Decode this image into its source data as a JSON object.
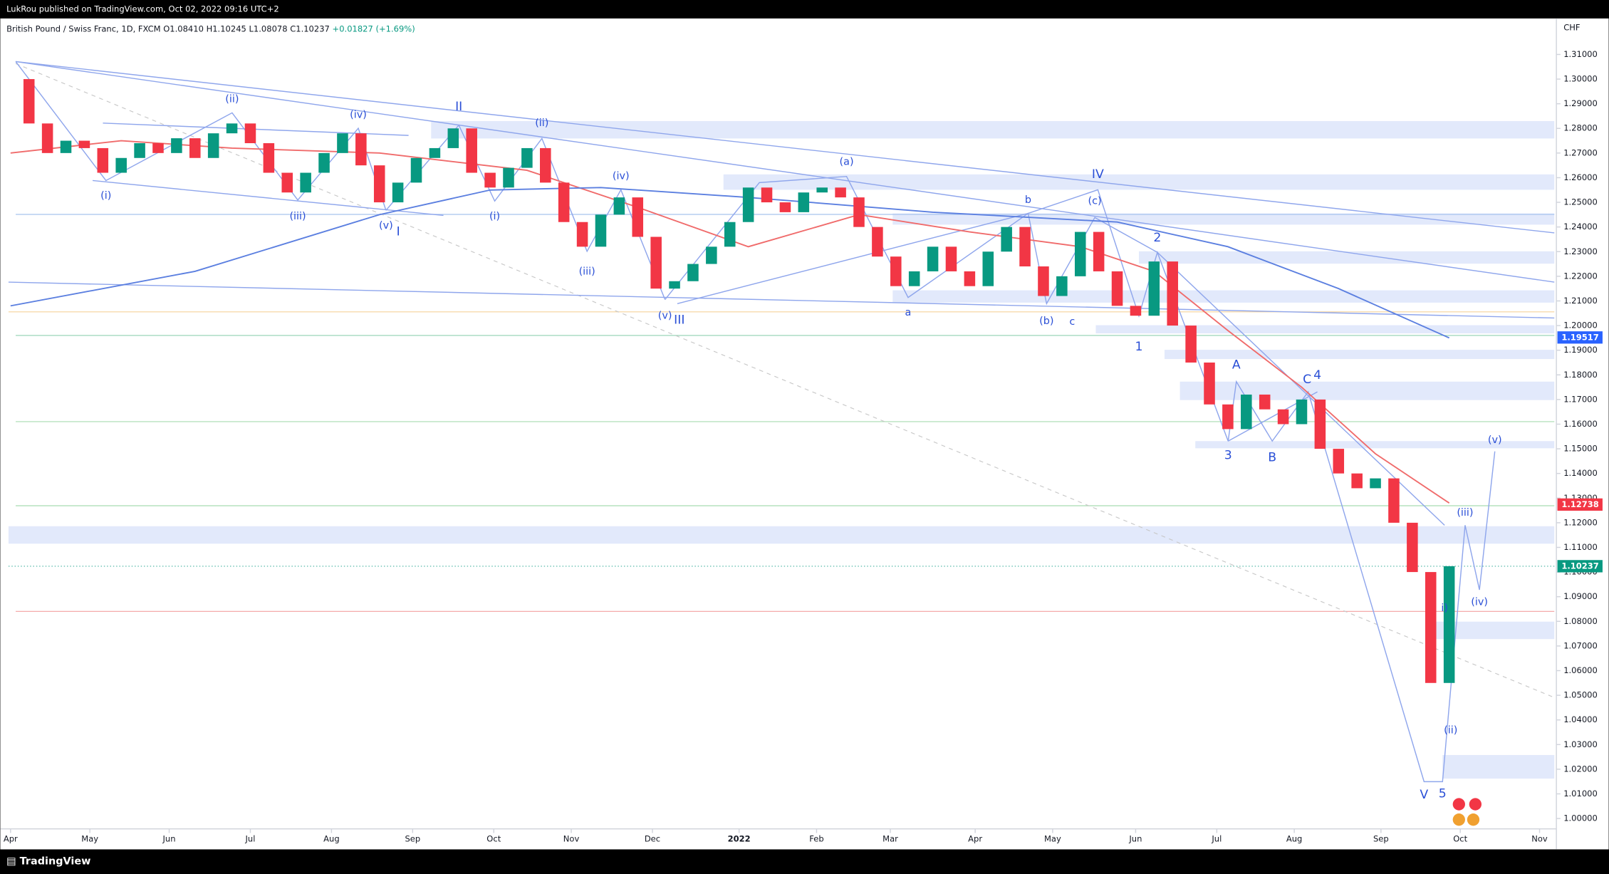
{
  "header": {
    "publisher": "LukRou published on TradingView.com, Oct 02, 2022 09:16 UTC+2",
    "symbol": "British Pound / Swiss Franc, 1D, FXCM",
    "ohlc": "O1.08410 H1.10245 L1.08078 C1.10237",
    "change": "+0.01827 (+1.69%)"
  },
  "footer": {
    "brand": "TradingView"
  },
  "chart_data": {
    "type": "candlestick",
    "currency": "CHF",
    "up_color": "#089981",
    "down_color": "#f23645",
    "closes": [
      1.3,
      1.282,
      1.27,
      1.275,
      1.272,
      1.262,
      1.268,
      1.274,
      1.27,
      1.276,
      1.268,
      1.278,
      1.282,
      1.274,
      1.262,
      1.254,
      1.262,
      1.27,
      1.278,
      1.265,
      1.25,
      1.258,
      1.268,
      1.272,
      1.28,
      1.262,
      1.256,
      1.264,
      1.272,
      1.258,
      1.242,
      1.232,
      1.245,
      1.252,
      1.236,
      1.215,
      1.218,
      1.225,
      1.232,
      1.242,
      1.256,
      1.25,
      1.246,
      1.254,
      1.256,
      1.252,
      1.24,
      1.228,
      1.216,
      1.222,
      1.232,
      1.222,
      1.216,
      1.23,
      1.24,
      1.224,
      1.212,
      1.22,
      1.238,
      1.222,
      1.208,
      1.204,
      1.226,
      1.2,
      1.185,
      1.168,
      1.158,
      1.172,
      1.166,
      1.16,
      1.17,
      1.15,
      1.14,
      1.134,
      1.138,
      1.12,
      1.1,
      1.055,
      1.10237
    ],
    "moving_averages": [
      {
        "color": "#f06b6b",
        "x": [
          0,
          6,
          12,
          20,
          28,
          34,
          40,
          46,
          52,
          58,
          62,
          66,
          70,
          74,
          78
        ],
        "values": [
          1.27,
          1.275,
          1.272,
          1.27,
          1.263,
          1.248,
          1.232,
          1.245,
          1.238,
          1.232,
          1.222,
          1.198,
          1.175,
          1.148,
          1.128
        ]
      },
      {
        "color": "#5b7fe0",
        "x": [
          0,
          10,
          20,
          26,
          32,
          40,
          50,
          60,
          66,
          72,
          78
        ],
        "values": [
          1.208,
          1.222,
          1.245,
          1.255,
          1.256,
          1.252,
          1.246,
          1.242,
          1.232,
          1.215,
          1.195
        ]
      }
    ],
    "xlim": [
      0,
      83.7
    ],
    "ylim": [
      0.9958,
      1.3246
    ],
    "xticks": [
      {
        "value": 0,
        "label": "Apr"
      },
      {
        "value": 4.3,
        "label": "May"
      },
      {
        "value": 8.6,
        "label": "Jun"
      },
      {
        "value": 13,
        "label": "Jul"
      },
      {
        "value": 17.4,
        "label": "Aug"
      },
      {
        "value": 21.8,
        "label": "Sep"
      },
      {
        "value": 26.2,
        "label": "Oct"
      },
      {
        "value": 30.4,
        "label": "Nov"
      },
      {
        "value": 34.8,
        "label": "Dec"
      },
      {
        "value": 39.5,
        "label": "2022"
      },
      {
        "value": 43.7,
        "label": "Feb"
      },
      {
        "value": 47.7,
        "label": "Mar"
      },
      {
        "value": 52.3,
        "label": "Apr"
      },
      {
        "value": 56.5,
        "label": "May"
      },
      {
        "value": 61,
        "label": "Jun"
      },
      {
        "value": 65.4,
        "label": "Jul"
      },
      {
        "value": 69.6,
        "label": "Aug"
      },
      {
        "value": 74.3,
        "label": "Sep"
      },
      {
        "value": 78.6,
        "label": "Oct"
      },
      {
        "value": 82.9,
        "label": "Nov"
      }
    ],
    "yticks": [
      {
        "value": 1.0,
        "label": "1.00000"
      },
      {
        "value": 1.01,
        "label": "1.01000"
      },
      {
        "value": 1.02,
        "label": "1.02000"
      },
      {
        "value": 1.03,
        "label": "1.03000"
      },
      {
        "value": 1.04,
        "label": "1.04000"
      },
      {
        "value": 1.05,
        "label": "1.05000"
      },
      {
        "value": 1.06,
        "label": "1.06000"
      },
      {
        "value": 1.07,
        "label": "1.07000"
      },
      {
        "value": 1.08,
        "label": "1.08000"
      },
      {
        "value": 1.09,
        "label": "1.09000"
      },
      {
        "value": 1.1,
        "label": "1.10000"
      },
      {
        "value": 1.11,
        "label": "1.11000"
      },
      {
        "value": 1.12,
        "label": "1.12000"
      },
      {
        "value": 1.13,
        "label": "1.13000"
      },
      {
        "value": 1.14,
        "label": "1.14000"
      },
      {
        "value": 1.15,
        "label": "1.15000"
      },
      {
        "value": 1.16,
        "label": "1.16000"
      },
      {
        "value": 1.17,
        "label": "1.17000"
      },
      {
        "value": 1.18,
        "label": "1.18000"
      },
      {
        "value": 1.19,
        "label": "1.19000"
      },
      {
        "value": 1.2,
        "label": "1.20000"
      },
      {
        "value": 1.21,
        "label": "1.21000"
      },
      {
        "value": 1.22,
        "label": "1.22000"
      },
      {
        "value": 1.23,
        "label": "1.23000"
      },
      {
        "value": 1.24,
        "label": "1.24000"
      },
      {
        "value": 1.25,
        "label": "1.25000"
      },
      {
        "value": 1.26,
        "label": "1.26000"
      },
      {
        "value": 1.27,
        "label": "1.27000"
      },
      {
        "value": 1.28,
        "label": "1.28000"
      },
      {
        "value": 1.29,
        "label": "1.29000"
      },
      {
        "value": 1.3,
        "label": "1.30000"
      },
      {
        "value": 1.31,
        "label": "1.31000"
      }
    ],
    "price_labels": [
      {
        "value": 1.19517,
        "color": "#2962ff"
      },
      {
        "value": 1.12738,
        "color": "#f23645"
      },
      {
        "value": 1.10237,
        "color": "#089981"
      }
    ],
    "annotations": [
      "(i)",
      "(ii)",
      "(iii)",
      "(iv)",
      "(v)",
      "I",
      "II",
      "(i)",
      "(ii)",
      "(iii)",
      "(iv)",
      "(v)",
      "III",
      "(a)",
      "a",
      "b",
      "(b)",
      "c",
      "(c)",
      "IV",
      "1",
      "2",
      "3",
      "A",
      "B",
      "C",
      "4",
      "(iii)",
      "(iv)",
      "(v)",
      "i)",
      "(ii)",
      "V",
      "5"
    ]
  }
}
